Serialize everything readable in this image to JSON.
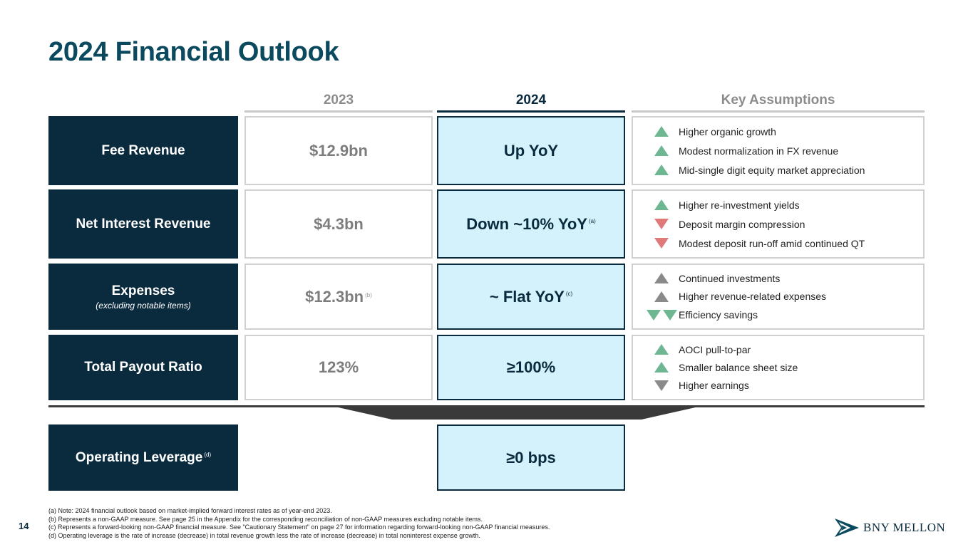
{
  "title": "2024 Financial Outlook",
  "page_number": "14",
  "columns": {
    "prior": "2023",
    "current": "2024",
    "assumptions": "Key Assumptions"
  },
  "colors": {
    "up_green": "#6fb693",
    "down_red": "#e07a7a",
    "neutral_gray": "#8a8a8a",
    "navy": "#0a2a3e",
    "light_blue": "#d4f2fb"
  },
  "rows": [
    {
      "label": "Fee Revenue",
      "sublabel": "",
      "value_2023": "$12.9bn",
      "value_2023_fn": "",
      "outlook_2024": "Up YoY",
      "outlook_fn": "",
      "assumptions": [
        {
          "direction": "up",
          "color": "green",
          "count": 1,
          "text": "Higher organic growth"
        },
        {
          "direction": "up",
          "color": "green",
          "count": 1,
          "text": "Modest normalization in FX revenue"
        },
        {
          "direction": "up",
          "color": "green",
          "count": 1,
          "text": "Mid-single digit equity market appreciation"
        }
      ]
    },
    {
      "label": "Net Interest Revenue",
      "sublabel": "",
      "value_2023": "$4.3bn",
      "value_2023_fn": "",
      "outlook_2024": "Down ~10% YoY",
      "outlook_fn": "(a)",
      "assumptions": [
        {
          "direction": "up",
          "color": "green",
          "count": 1,
          "text": "Higher re-investment yields"
        },
        {
          "direction": "down",
          "color": "red",
          "count": 1,
          "text": "Deposit margin compression"
        },
        {
          "direction": "down",
          "color": "red",
          "count": 1,
          "text": "Modest deposit run-off amid continued QT"
        }
      ]
    },
    {
      "label": "Expenses",
      "sublabel": "(excluding notable items)",
      "value_2023": "$12.3bn",
      "value_2023_fn": "(b)",
      "outlook_2024": "~ Flat YoY",
      "outlook_fn": "(c)",
      "assumptions": [
        {
          "direction": "up",
          "color": "gray",
          "count": 1,
          "text": "Continued investments"
        },
        {
          "direction": "up",
          "color": "gray",
          "count": 1,
          "text": "Higher revenue-related expenses"
        },
        {
          "direction": "down",
          "color": "green",
          "count": 2,
          "text": "Efficiency savings"
        }
      ]
    },
    {
      "label": "Total Payout Ratio",
      "sublabel": "",
      "value_2023": "123%",
      "value_2023_fn": "",
      "outlook_2024": "≥100%",
      "outlook_fn": "",
      "assumptions": [
        {
          "direction": "up",
          "color": "green",
          "count": 1,
          "text": "AOCI pull-to-par"
        },
        {
          "direction": "up",
          "color": "green",
          "count": 1,
          "text": "Smaller balance sheet size"
        },
        {
          "direction": "down",
          "color": "gray",
          "count": 1,
          "text": "Higher earnings"
        }
      ]
    }
  ],
  "summary": {
    "label": "Operating Leverage",
    "label_fn": "(d)",
    "outlook_2024": "≥0 bps"
  },
  "footnotes": [
    "(a) Note: 2024 financial outlook based on market-implied forward interest rates as of year-end 2023.",
    "(b) Represents a non-GAAP measure. See page 25 in the Appendix for the corresponding reconciliation of non-GAAP measures excluding notable items.",
    "(c) Represents a forward-looking non-GAAP financial measure. See \"Cautionary Statement\" on page 27 for information regarding forward-looking non-GAAP financial measures.",
    "(d) Operating leverage is the rate of increase (decrease) in total revenue growth less the rate of increase (decrease) in total noninterest expense growth."
  ],
  "logo": {
    "text": "BNY MELLON",
    "icon": "bny-mellon-logo-icon"
  }
}
